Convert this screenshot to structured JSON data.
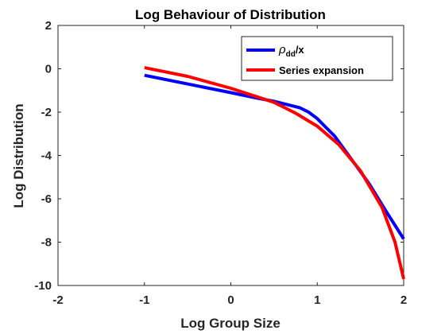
{
  "chart_data": {
    "type": "line",
    "title": "Log Behaviour of Distribution",
    "xlabel": "Log Group Size",
    "ylabel": "Log Distribution",
    "xlim": [
      -2,
      2
    ],
    "ylim": [
      -10,
      2
    ],
    "xticks": [
      "-2",
      "-1",
      "0",
      "1",
      "2"
    ],
    "yticks": [
      "2",
      "0",
      "-2",
      "-4",
      "-6",
      "-8",
      "-10"
    ],
    "grid": false,
    "legend_position": "top-right",
    "series": [
      {
        "name": "ρ_dd/x",
        "color": "#0000ff",
        "x": [
          -1.0,
          -0.5,
          0.0,
          0.3,
          0.5,
          0.7,
          0.8,
          0.9,
          1.0,
          1.1,
          1.2,
          1.4,
          1.6,
          1.8,
          2.0
        ],
        "y": [
          -0.3,
          -0.7,
          -1.1,
          -1.35,
          -1.5,
          -1.7,
          -1.8,
          -2.0,
          -2.3,
          -2.7,
          -3.1,
          -4.2,
          -5.3,
          -6.6,
          -7.85
        ]
      },
      {
        "name": "Series expansion",
        "color": "#ff0000",
        "x": [
          -1.0,
          -0.5,
          0.0,
          0.5,
          0.75,
          1.0,
          1.25,
          1.5,
          1.75,
          1.9,
          2.0
        ],
        "y": [
          0.05,
          -0.35,
          -0.9,
          -1.55,
          -2.05,
          -2.65,
          -3.5,
          -4.7,
          -6.4,
          -8.0,
          -9.7
        ]
      }
    ]
  }
}
